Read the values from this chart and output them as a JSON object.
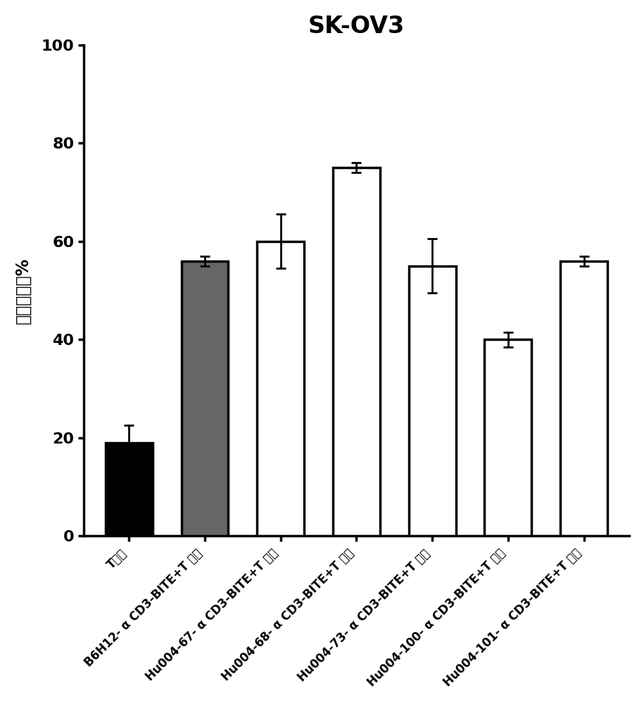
{
  "title": "SK-OV3",
  "ylabel": "细胞毒性，%",
  "categories": [
    "T细胞",
    "B6H12- α CD3-BITE+T 细胞",
    "Hu004-67- α CD3-BITE+T 细胞",
    "Hu004-68- α CD3-BITE+T 细胞",
    "Hu004-73- α CD3-BITE+T 细胞",
    "Hu004-100- α CD3-BITE+T 细胞",
    "Hu004-101- α CD3-BITE+T 细胞"
  ],
  "values": [
    19,
    56,
    60,
    75,
    55,
    40,
    56
  ],
  "errors": [
    3.5,
    1.0,
    5.5,
    1.0,
    5.5,
    1.5,
    1.0
  ],
  "bar_colors": [
    "#000000",
    "#666666",
    "#ffffff",
    "#ffffff",
    "#ffffff",
    "#ffffff",
    "#ffffff"
  ],
  "bar_edgecolors": [
    "#000000",
    "#000000",
    "#000000",
    "#000000",
    "#000000",
    "#000000",
    "#000000"
  ],
  "ylim": [
    0,
    100
  ],
  "yticks": [
    0,
    20,
    40,
    60,
    80,
    100
  ],
  "ytick_labels": [
    "0",
    "20",
    "40",
    "60",
    "80",
    "100"
  ],
  "title_fontsize": 24,
  "ylabel_fontsize": 17,
  "ytick_fontsize": 16,
  "xtick_fontsize": 12,
  "bar_linewidth": 2.5,
  "background_color": "#ffffff"
}
